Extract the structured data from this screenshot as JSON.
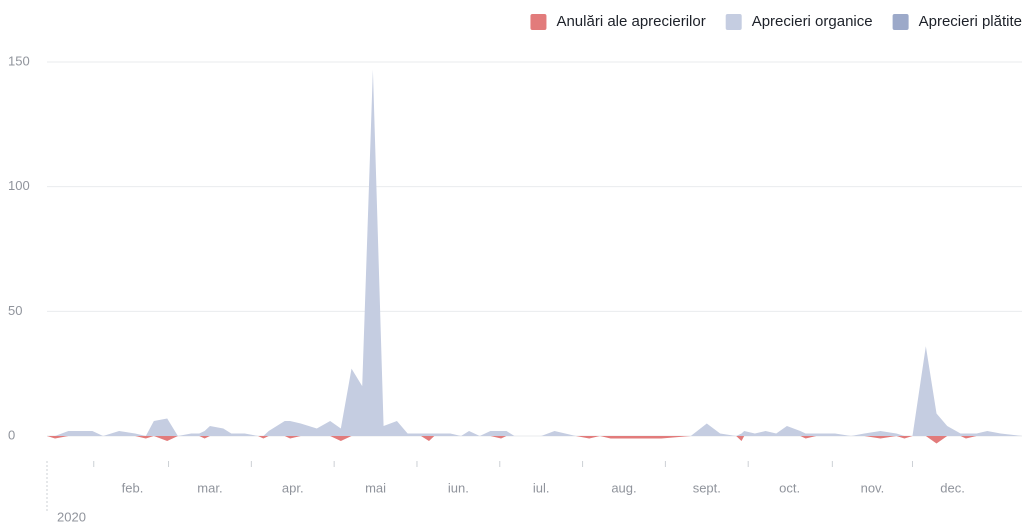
{
  "chart_data": {
    "type": "area",
    "x": [
      0,
      3,
      8,
      17,
      21,
      27,
      33,
      37,
      40,
      45,
      49,
      54,
      57,
      59,
      61,
      66,
      69,
      74,
      79,
      81,
      83,
      89,
      91,
      95,
      101,
      106,
      110,
      114,
      118,
      122,
      126,
      131,
      135,
      140,
      143,
      145,
      151,
      155,
      158,
      162,
      166,
      170,
      172,
      175,
      185,
      190,
      198,
      203,
      207,
      211,
      230,
      241,
      247,
      252,
      258,
      260,
      261,
      265,
      269,
      273,
      277,
      282,
      284,
      288,
      295,
      301,
      306,
      312,
      318,
      321,
      324,
      329,
      333,
      337,
      342,
      344,
      348,
      352,
      357,
      365
    ],
    "series": [
      {
        "name": "Anulări ale aprecierilor",
        "color": "#e27b7b",
        "values": [
          0,
          -1,
          0,
          0,
          0,
          0,
          0,
          -1,
          0,
          -2,
          0,
          0,
          0,
          -1,
          0,
          0,
          0,
          0,
          0,
          -1,
          0,
          0,
          -1,
          0,
          0,
          0,
          -2,
          0,
          0,
          0,
          0,
          0,
          0,
          0,
          -2,
          0,
          0,
          0,
          0,
          0,
          0,
          -1,
          0,
          0,
          0,
          0,
          0,
          -1,
          0,
          -1,
          -1,
          0,
          0,
          0,
          0,
          -2,
          0,
          0,
          0,
          0,
          0,
          0,
          -1,
          0,
          0,
          0,
          0,
          -1,
          0,
          -1,
          0,
          0,
          -3,
          0,
          0,
          -1,
          0,
          0,
          0,
          0
        ]
      },
      {
        "name": "Aprecieri organice",
        "color": "#c5cde1",
        "values": [
          0,
          0,
          2,
          2,
          0,
          2,
          1,
          0,
          6,
          7,
          0,
          1,
          1,
          2,
          4,
          3,
          1,
          1,
          0,
          0,
          2,
          6,
          6,
          5,
          3,
          6,
          3,
          27,
          20,
          147,
          4,
          6,
          1,
          1,
          1,
          1,
          1,
          0,
          2,
          0,
          2,
          2,
          2,
          0,
          0,
          2,
          0,
          0,
          0,
          0,
          0,
          0,
          5,
          1,
          0,
          1,
          2,
          1,
          2,
          1,
          4,
          2,
          1,
          1,
          1,
          0,
          1,
          2,
          1,
          0,
          0,
          36,
          9,
          4,
          1,
          1,
          1,
          2,
          1,
          0
        ]
      },
      {
        "name": "Aprecieri plătite",
        "color": "#9ca9c9",
        "values": [
          0,
          0,
          0,
          0,
          0,
          0,
          0,
          0,
          0,
          0,
          0,
          0,
          0,
          0,
          0,
          0,
          0,
          0,
          0,
          0,
          0,
          0,
          0,
          0,
          0,
          0,
          0,
          0,
          0,
          0,
          0,
          0,
          0,
          0,
          0,
          0,
          0,
          0,
          0,
          0,
          0,
          0,
          0,
          0,
          0,
          0,
          0,
          0,
          0,
          0,
          0,
          0,
          0,
          0,
          0,
          0,
          0,
          0,
          0,
          0,
          0,
          0,
          0,
          0,
          0,
          0,
          0,
          0,
          0,
          0,
          0,
          0,
          0,
          0,
          0,
          0,
          0,
          0,
          0,
          0
        ]
      }
    ],
    "xlim": [
      0,
      365
    ],
    "xticks": [
      {
        "value": 32,
        "label": "feb."
      },
      {
        "value": 61,
        "label": "mar."
      },
      {
        "value": 92,
        "label": "apr."
      },
      {
        "value": 123,
        "label": "mai"
      },
      {
        "value": 154,
        "label": "iun."
      },
      {
        "value": 185,
        "label": "iul."
      },
      {
        "value": 216,
        "label": "aug."
      },
      {
        "value": 247,
        "label": "sept."
      },
      {
        "value": 278,
        "label": "oct."
      },
      {
        "value": 309,
        "label": "nov."
      },
      {
        "value": 339,
        "label": "dec."
      }
    ],
    "year_label": "2020",
    "ylim": [
      -5,
      150
    ],
    "yticks": [
      0,
      50,
      100,
      150
    ],
    "grid": true,
    "legend": "top-right"
  }
}
